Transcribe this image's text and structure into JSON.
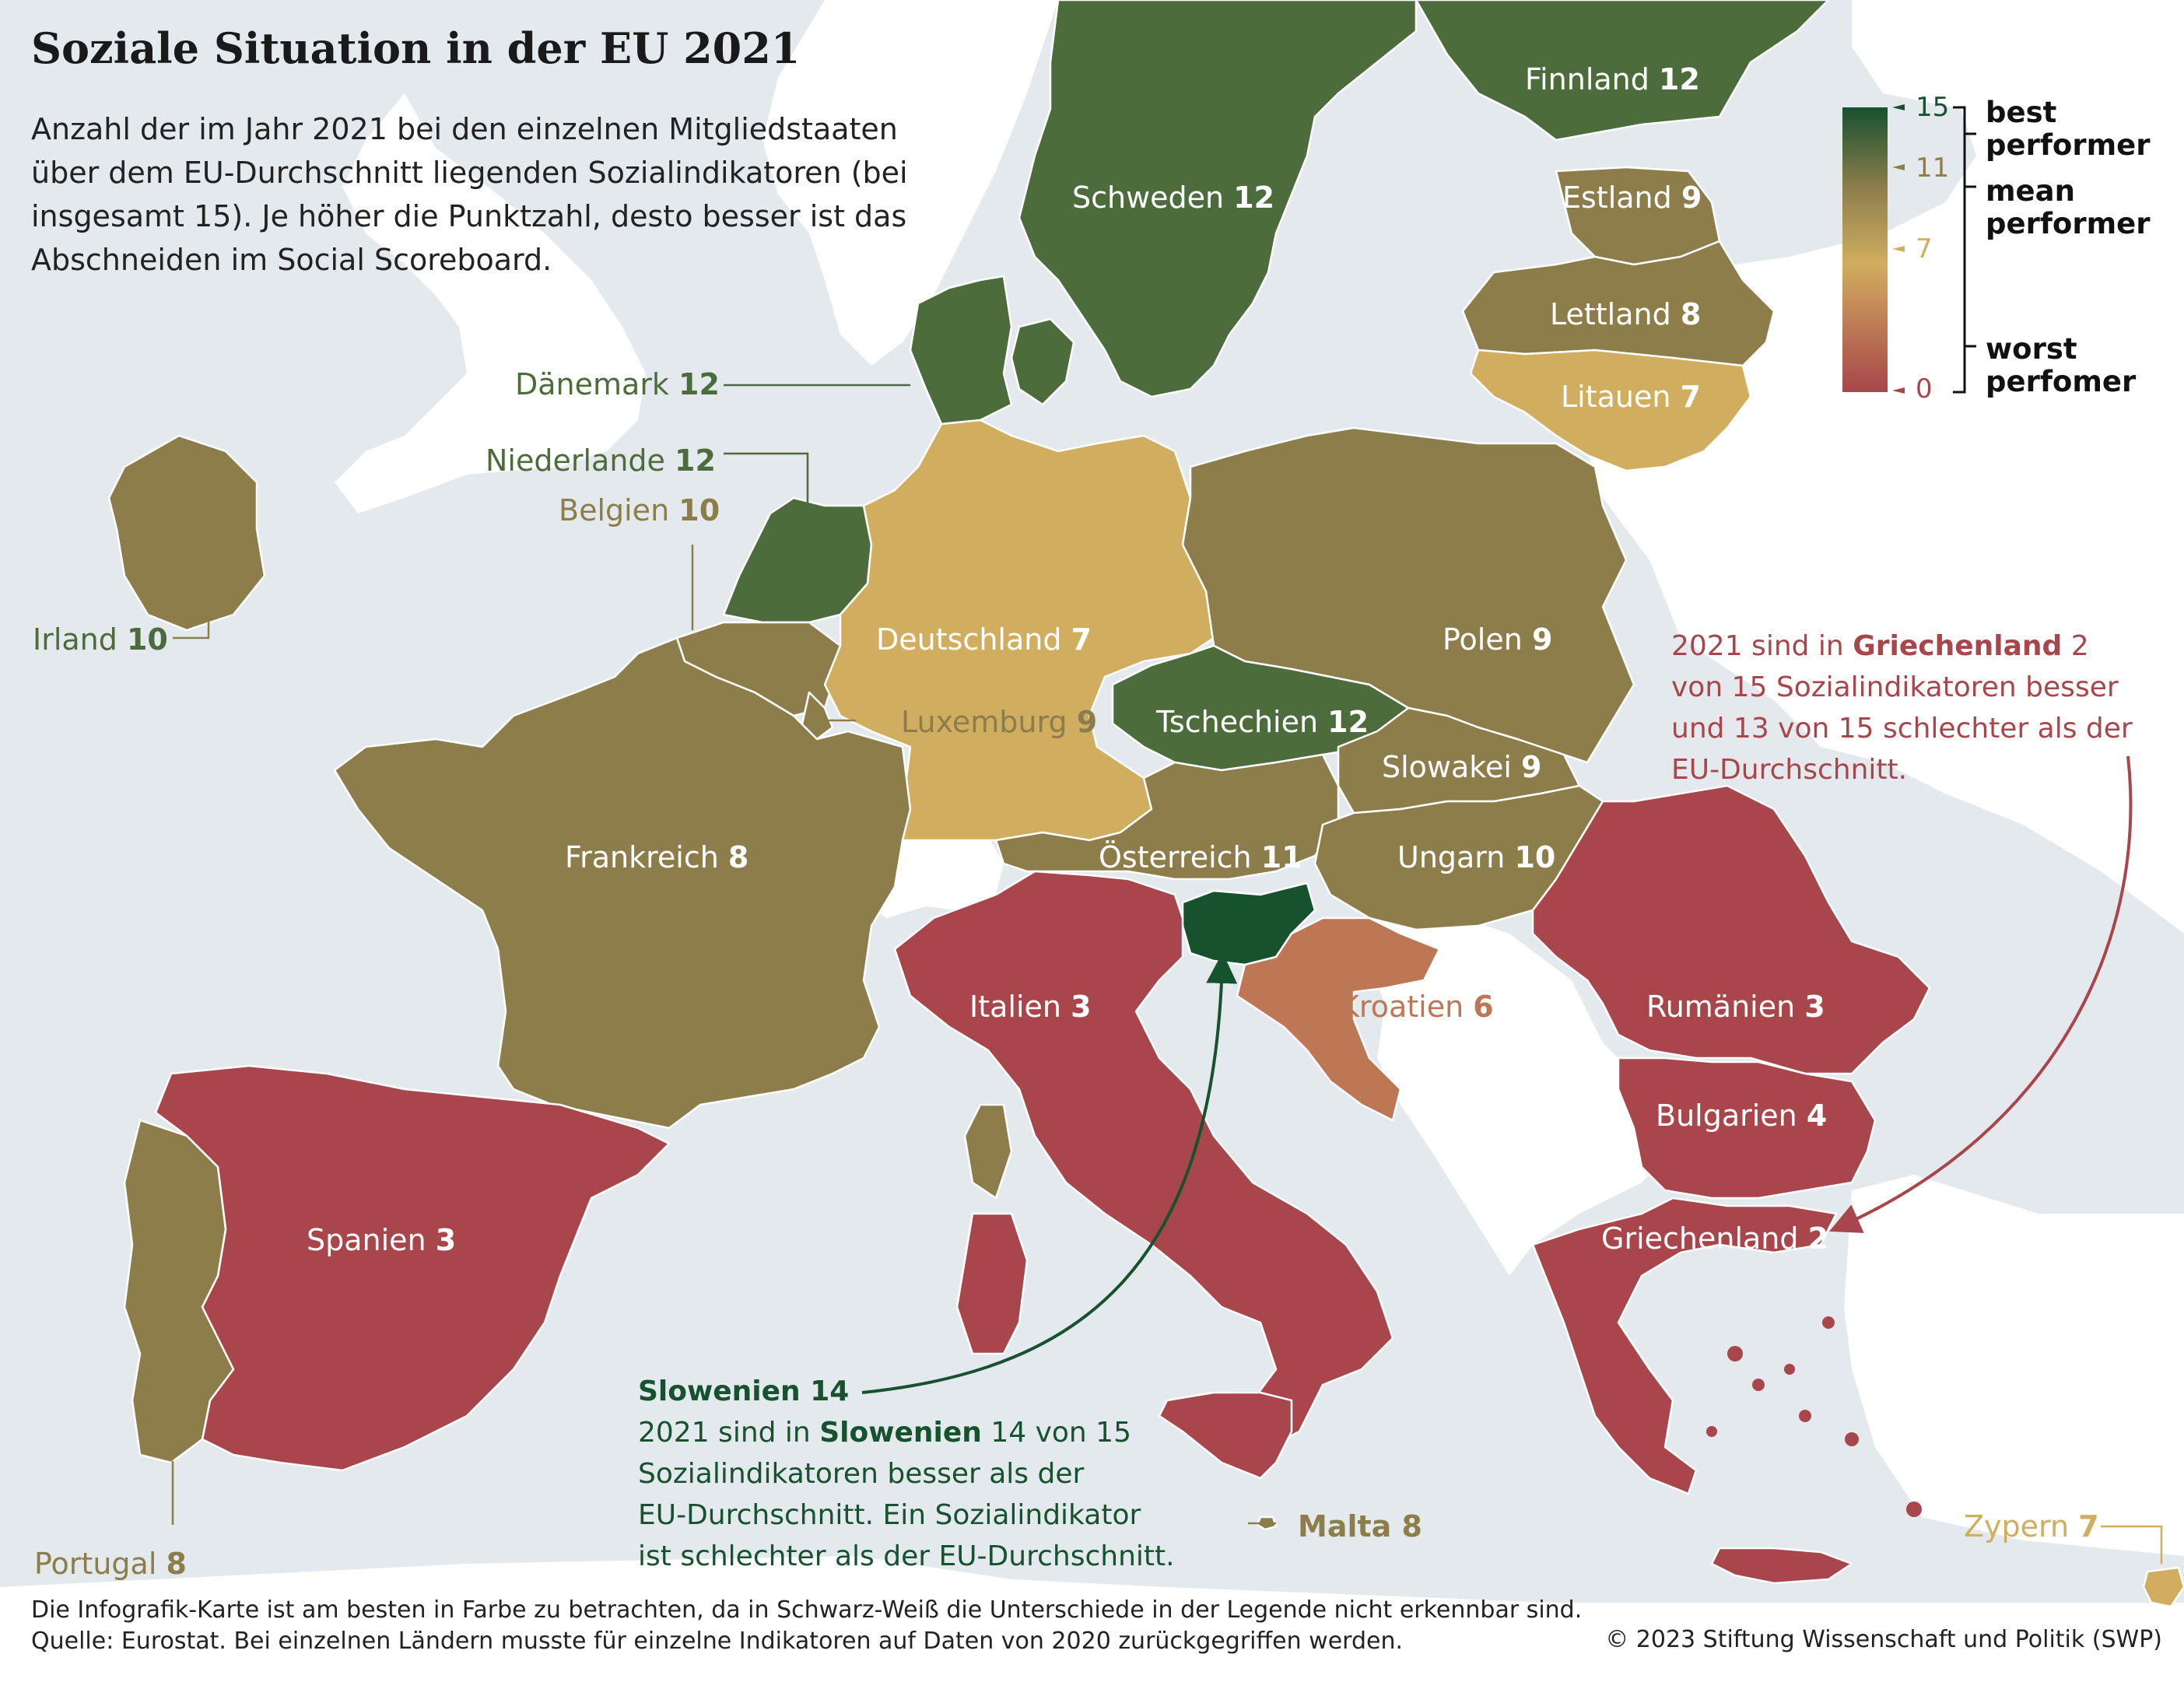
{
  "title": "Soziale Situation in der EU 2021",
  "subtitle": "Anzahl der im Jahr 2021 bei den einzelnen Mitgliedstaaten über dem EU-Durchschnitt liegenden Sozialindikatoren (bei insgesamt 15). Je höher die Punktzahl, desto besser ist das Abschneiden im Social Scoreboard.",
  "legend": {
    "ticks": [
      "15",
      "11",
      "7",
      "0"
    ],
    "best": "best performer",
    "mean": "mean performer",
    "worst": "worst perfomer",
    "scale_colors": [
      "#17522f",
      "#8c7d4b",
      "#d1ad5f",
      "#a8464b"
    ]
  },
  "countries": {
    "finnland": {
      "name": "Finnland",
      "score": "12"
    },
    "schweden": {
      "name": "Schweden",
      "score": "12"
    },
    "estland": {
      "name": "Estland",
      "score": "9"
    },
    "lettland": {
      "name": "Lettland",
      "score": "8"
    },
    "litauen": {
      "name": "Litauen",
      "score": "7"
    },
    "daenemark": {
      "name": "Dänemark",
      "score": "12"
    },
    "niederlande": {
      "name": "Niederlande",
      "score": "12"
    },
    "belgien": {
      "name": "Belgien",
      "score": "10"
    },
    "irland": {
      "name": "Irland",
      "score": "10"
    },
    "deutschland": {
      "name": "Deutschland",
      "score": "7"
    },
    "polen": {
      "name": "Polen",
      "score": "9"
    },
    "luxemburg": {
      "name": "Luxemburg",
      "score": "9"
    },
    "tschechien": {
      "name": "Tschechien",
      "score": "12"
    },
    "slowakei": {
      "name": "Slowakei",
      "score": "9"
    },
    "frankreich": {
      "name": "Frankreich",
      "score": "8"
    },
    "oesterreich": {
      "name": "Österreich",
      "score": "11"
    },
    "ungarn": {
      "name": "Ungarn",
      "score": "10"
    },
    "italien": {
      "name": "Italien",
      "score": "3"
    },
    "kroatien": {
      "name": "Kroatien",
      "score": "6"
    },
    "rumaenien": {
      "name": "Rumänien",
      "score": "3"
    },
    "bulgarien": {
      "name": "Bulgarien",
      "score": "4"
    },
    "griechenland": {
      "name": "Griechenland",
      "score": "2"
    },
    "spanien": {
      "name": "Spanien",
      "score": "3"
    },
    "portugal": {
      "name": "Portugal",
      "score": "8"
    },
    "malta": {
      "name": "Malta",
      "score": "8"
    },
    "zypern": {
      "name": "Zypern",
      "score": "7"
    },
    "slowenien": {
      "name": "Slowenien",
      "score": "14"
    }
  },
  "annotations": {
    "griechenland": {
      "l1_pre": "2021 sind in ",
      "l1_bold": "Griechenland",
      "l1_post": " 2",
      "l2": "von 15 Sozialindikatoren besser",
      "l3": "und 13 von 15 schlechter als der",
      "l4": "EU-Durchschnitt."
    },
    "slowenien": {
      "heading_name": "Slowenien",
      "heading_score": "14",
      "l1_pre": "2021 sind in ",
      "l1_bold": "Slowenien",
      "l1_post": " 14 von 15",
      "l2": "Sozialindikatoren besser als der",
      "l3": "EU-Durchschnitt. Ein Sozialindikator",
      "l4": "ist schlechter als der EU-Durchschnitt."
    }
  },
  "footer": {
    "note": "Die Infografik-Karte ist am besten in Farbe zu betrachten, da in Schwarz-Weiß die Unterschiede in der Legende nicht erkennbar sind.",
    "source": "Quelle: Eurostat. Bei einzelnen Ländern musste für einzelne Indikatoren auf Daten von 2020 zurückgegriffen werden.",
    "copyright": "© 2023 Stiftung Wissenschaft und Politik (SWP)"
  }
}
